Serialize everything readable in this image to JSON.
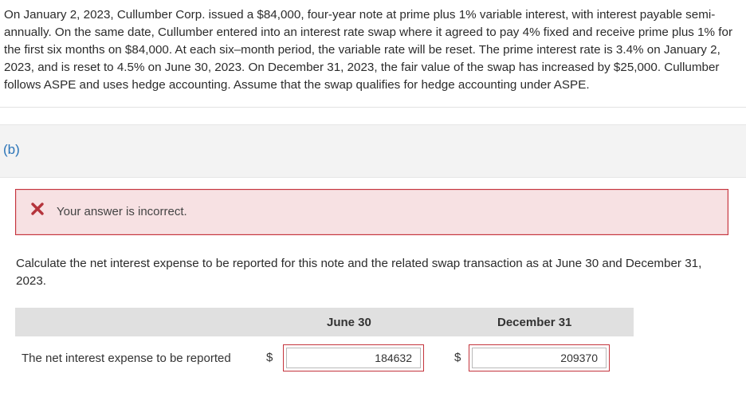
{
  "problem": {
    "text": "On January 2, 2023, Cullumber Corp. issued a $84,000, four-year note at prime plus 1% variable interest, with interest payable semi-annually. On the same date, Cullumber entered into an interest rate swap where it agreed to pay 4% fixed and receive prime plus 1% for the first six months on $84,000. At each six–month period, the variable rate will be reset. The prime interest rate is 3.4% on January 2, 2023, and is reset to 4.5% on June 30, 2023. On December 31, 2023, the fair value of the swap has increased by $25,000. Cullumber follows ASPE and uses hedge accounting. Assume that the swap qualifies for hedge accounting under ASPE."
  },
  "part": {
    "label": "(b)"
  },
  "alert": {
    "icon": "x-icon",
    "message": "Your answer is incorrect.",
    "colors": {
      "border": "#c5343e",
      "background": "#f7e1e3"
    }
  },
  "question": {
    "text": "Calculate the net interest expense to be reported for this note and the related swap transaction as at June 30 and December 31, 2023."
  },
  "table": {
    "columns": [
      "June 30",
      "December 31"
    ],
    "row": {
      "label": "The net interest expense to be reported",
      "currency": "$",
      "values": [
        "184632",
        "209370"
      ]
    }
  },
  "colors": {
    "accent": "#2a74b8",
    "error": "#c4343c"
  }
}
